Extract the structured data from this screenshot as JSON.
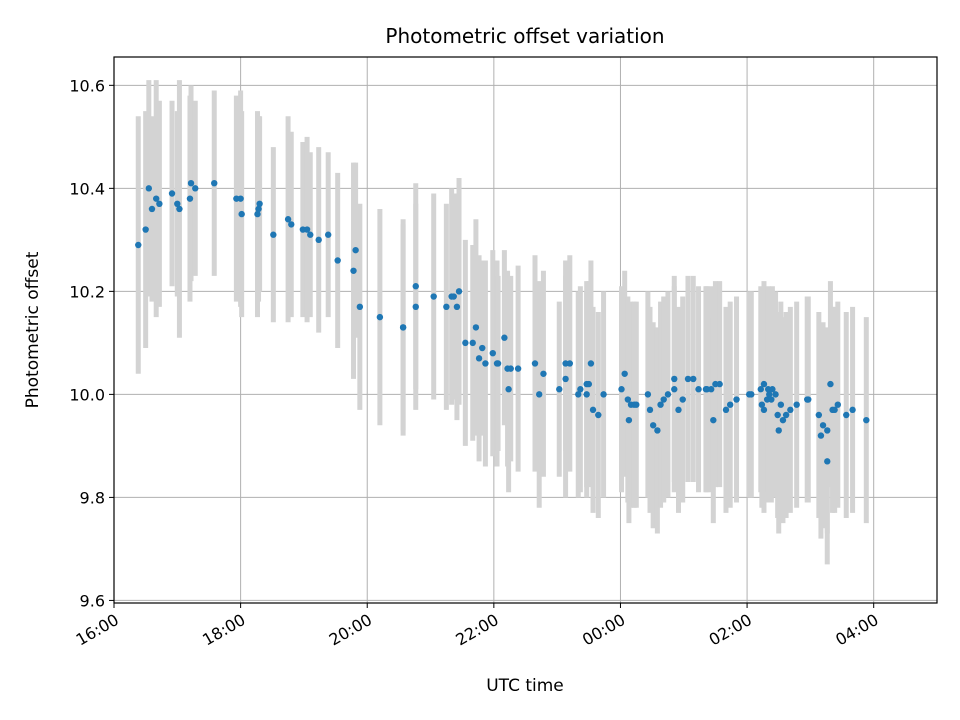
{
  "chart_data": {
    "type": "scatter",
    "title": "Photometric offset variation",
    "xlabel": "UTC time",
    "ylabel": "Photometric offset",
    "x_is_time": true,
    "xlim": [
      "16:00",
      "05:00"
    ],
    "ylim": [
      9.595,
      10.655
    ],
    "xticks": [
      "16:00",
      "18:00",
      "20:00",
      "22:00",
      "00:00",
      "02:00",
      "04:00"
    ],
    "yticks": [
      "9.6",
      "9.8",
      "10.0",
      "10.2",
      "10.4",
      "10.6"
    ],
    "grid": true,
    "colors": {
      "points": "#1f77b4",
      "errorbars": "#d3d3d3",
      "grid": "#b0b0b0"
    },
    "series": [
      {
        "x": [
          "16:23",
          "16:30",
          "16:33",
          "16:36",
          "16:40",
          "16:43",
          "16:55",
          "17:00",
          "17:02",
          "17:12",
          "17:13",
          "17:17",
          "17:35",
          "17:56",
          "18:00",
          "18:01",
          "18:16",
          "18:17",
          "18:18",
          "18:31",
          "18:45",
          "18:48",
          "18:59",
          "19:03",
          "19:06",
          "19:14",
          "19:23",
          "19:32",
          "19:47",
          "19:49",
          "19:53",
          "20:12",
          "20:34",
          "20:34",
          "20:46",
          "20:46",
          "21:03",
          "21:15",
          "21:20",
          "21:22",
          "21:25",
          "21:27",
          "21:33",
          "21:40",
          "21:43",
          "21:46",
          "21:49",
          "21:52",
          "21:59",
          "22:03",
          "22:04",
          "22:10",
          "22:13",
          "22:14",
          "22:16",
          "22:23",
          "22:39",
          "22:43",
          "22:47",
          "23:02",
          "23:08",
          "23:08",
          "23:12",
          "23:20",
          "23:22",
          "23:28",
          "23:28",
          "23:30",
          "23:32",
          "23:34",
          "23:39",
          "23:44",
          "24:01",
          "24:04",
          "24:07",
          "24:08",
          "24:10",
          "24:13",
          "24:15",
          "24:26",
          "24:28",
          "24:31",
          "24:35",
          "24:38",
          "24:41",
          "24:45",
          "24:51",
          "24:51",
          "24:55",
          "24:59",
          "25:04",
          "25:09",
          "25:14",
          "25:21",
          "25:22",
          "25:26",
          "25:28",
          "25:30",
          "25:34",
          "25:40",
          "25:44",
          "25:50",
          "26:02",
          "26:04",
          "26:13",
          "26:14",
          "26:16",
          "26:16",
          "26:19",
          "26:20",
          "26:21",
          "26:23",
          "26:24",
          "26:27",
          "26:29",
          "26:30",
          "26:32",
          "26:34",
          "26:37",
          "26:41",
          "26:47",
          "26:57",
          "26:58",
          "27:08",
          "27:10",
          "27:12",
          "27:16",
          "27:16",
          "27:19",
          "27:21",
          "27:23",
          "27:26",
          "27:34",
          "27:40",
          "27:53"
        ],
        "y": [
          10.29,
          10.32,
          10.4,
          10.36,
          10.38,
          10.37,
          10.39,
          10.37,
          10.36,
          10.38,
          10.41,
          10.4,
          10.41,
          10.38,
          10.38,
          10.35,
          10.35,
          10.36,
          10.37,
          10.31,
          10.34,
          10.33,
          10.32,
          10.32,
          10.31,
          10.3,
          10.31,
          10.26,
          10.24,
          10.28,
          10.17,
          10.15,
          10.13,
          10.13,
          10.17,
          10.21,
          10.19,
          10.17,
          10.19,
          10.19,
          10.17,
          10.2,
          10.1,
          10.1,
          10.13,
          10.07,
          10.09,
          10.06,
          10.08,
          10.06,
          10.06,
          10.11,
          10.05,
          10.01,
          10.05,
          10.05,
          10.06,
          10.0,
          10.04,
          10.01,
          10.03,
          10.06,
          10.06,
          10.0,
          10.01,
          10.0,
          10.02,
          10.02,
          10.06,
          9.97,
          9.96,
          10.0,
          10.01,
          10.04,
          9.99,
          9.95,
          9.98,
          9.98,
          9.98,
          10.0,
          9.97,
          9.94,
          9.93,
          9.98,
          9.99,
          10.0,
          10.01,
          10.03,
          9.97,
          9.99,
          10.03,
          10.03,
          10.01,
          10.01,
          10.01,
          10.01,
          9.95,
          10.02,
          10.02,
          9.97,
          9.98,
          9.99,
          10.0,
          10.0,
          10.01,
          9.98,
          10.02,
          9.97,
          9.99,
          10.01,
          10.0,
          9.99,
          10.01,
          10.0,
          9.96,
          9.93,
          9.98,
          9.95,
          9.96,
          9.97,
          9.98,
          9.99,
          9.99,
          9.96,
          9.92,
          9.94,
          9.93,
          9.87,
          10.02,
          9.97,
          9.97,
          9.98,
          9.96,
          9.97,
          9.95
        ],
        "yerr": [
          0.25,
          0.23,
          0.21,
          0.18,
          0.23,
          0.2,
          0.18,
          0.18,
          0.25,
          0.2,
          0.19,
          0.17,
          0.18,
          0.2,
          0.21,
          0.2,
          0.2,
          0.18,
          0.17,
          0.17,
          0.2,
          0.18,
          0.17,
          0.18,
          0.16,
          0.18,
          0.16,
          0.17,
          0.21,
          0.17,
          0.2,
          0.21,
          0.2,
          0.21,
          0.2,
          0.2,
          0.2,
          0.2,
          0.21,
          0.2,
          0.22,
          0.22,
          0.2,
          0.19,
          0.21,
          0.2,
          0.17,
          0.2,
          0.2,
          0.2,
          0.17,
          0.17,
          0.19,
          0.2,
          0.18,
          0.2,
          0.21,
          0.22,
          0.2,
          0.17,
          0.23,
          0.17,
          0.21,
          0.2,
          0.2,
          0.2,
          0.2,
          0.2,
          0.2,
          0.2,
          0.2,
          0.2,
          0.2,
          0.2,
          0.2,
          0.2,
          0.2,
          0.2,
          0.2,
          0.2,
          0.2,
          0.2,
          0.2,
          0.2,
          0.2,
          0.2,
          0.2,
          0.2,
          0.2,
          0.2,
          0.2,
          0.2,
          0.2,
          0.2,
          0.2,
          0.2,
          0.2,
          0.2,
          0.2,
          0.2,
          0.2,
          0.2,
          0.2,
          0.2,
          0.2,
          0.2,
          0.2,
          0.2,
          0.2,
          0.2,
          0.2,
          0.2,
          0.2,
          0.2,
          0.2,
          0.2,
          0.2,
          0.2,
          0.2,
          0.2,
          0.2,
          0.2,
          0.2,
          0.2,
          0.2,
          0.2,
          0.2,
          0.2,
          0.2,
          0.2,
          0.2,
          0.2,
          0.2,
          0.2,
          0.2
        ]
      }
    ]
  }
}
